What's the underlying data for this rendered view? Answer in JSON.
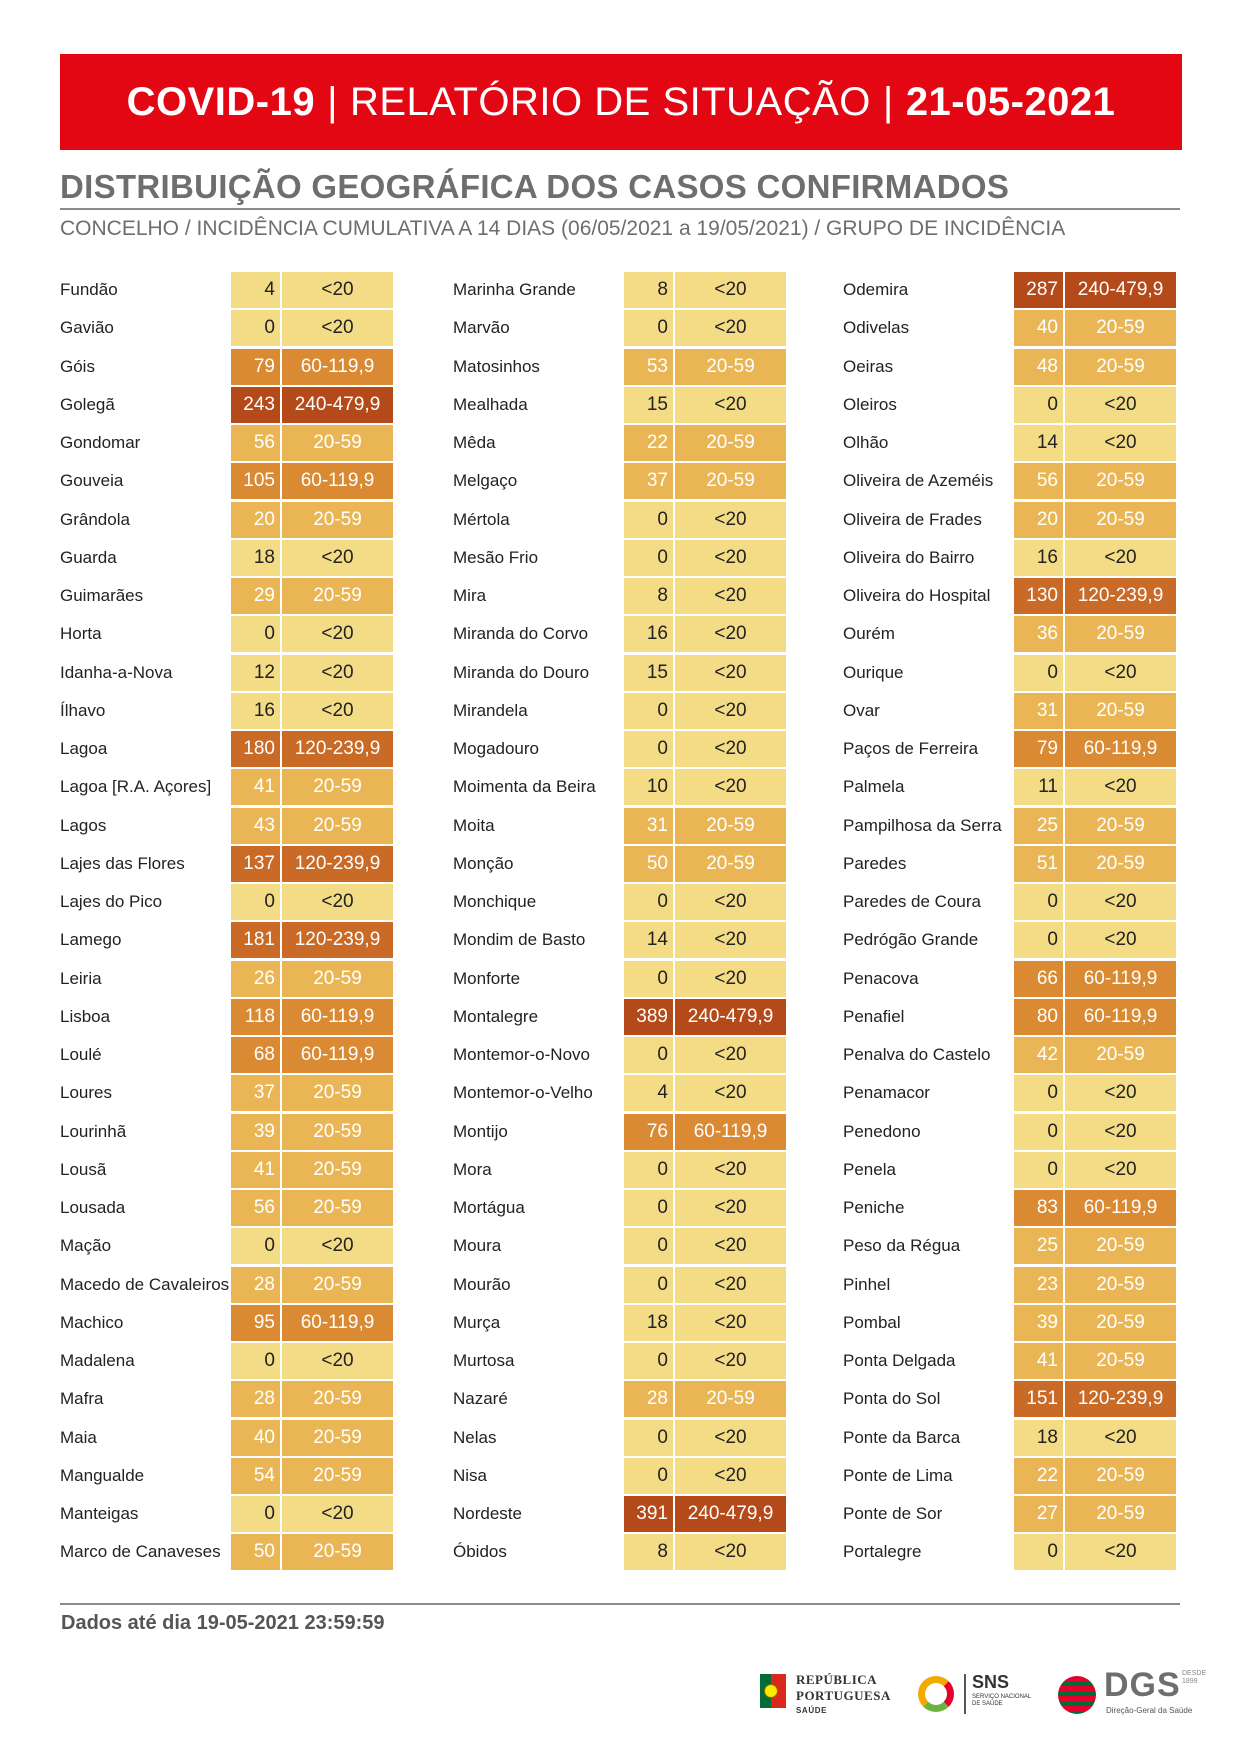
{
  "header": {
    "part1": "COVID-19",
    "sep1": "|",
    "part2": "RELATÓRIO DE SITUAÇÃO",
    "sep2": "|",
    "part3": "21-05-2021"
  },
  "section_title": "DISTRIBUIÇÃO GEOGRÁFICA DOS CASOS CONFIRMADOS",
  "subtitle": "CONCELHO / INCIDÊNCIA CUMULATIVA A 14 DIAS (06/05/2021 a 19/05/2021) / GRUPO DE INCIDÊNCIA",
  "group_colors": {
    "<20": {
      "bg": "#f4dc86",
      "fg": "#222222"
    },
    "20-59": {
      "bg": "#eab655",
      "fg": "#ffffff"
    },
    "60-119,9": {
      "bg": "#d98a33",
      "fg": "#ffffff"
    },
    "120-239,9": {
      "bg": "#c96a27",
      "fg": "#ffffff"
    },
    "240-479,9": {
      "bg": "#b44a1a",
      "fg": "#ffffff"
    }
  },
  "columns": [
    [
      {
        "name": "Fundão",
        "value": "4",
        "group": "<20"
      },
      {
        "name": "Gavião",
        "value": "0",
        "group": "<20"
      },
      {
        "name": "Góis",
        "value": "79",
        "group": "60-119,9"
      },
      {
        "name": "Golegã",
        "value": "243",
        "group": "240-479,9"
      },
      {
        "name": "Gondomar",
        "value": "56",
        "group": "20-59"
      },
      {
        "name": "Gouveia",
        "value": "105",
        "group": "60-119,9"
      },
      {
        "name": "Grândola",
        "value": "20",
        "group": "20-59"
      },
      {
        "name": "Guarda",
        "value": "18",
        "group": "<20"
      },
      {
        "name": "Guimarães",
        "value": "29",
        "group": "20-59"
      },
      {
        "name": "Horta",
        "value": "0",
        "group": "<20"
      },
      {
        "name": "Idanha-a-Nova",
        "value": "12",
        "group": "<20"
      },
      {
        "name": "Ílhavo",
        "value": "16",
        "group": "<20"
      },
      {
        "name": "Lagoa",
        "value": "180",
        "group": "120-239,9"
      },
      {
        "name": "Lagoa [R.A. Açores]",
        "value": "41",
        "group": "20-59"
      },
      {
        "name": "Lagos",
        "value": "43",
        "group": "20-59"
      },
      {
        "name": "Lajes das Flores",
        "value": "137",
        "group": "120-239,9"
      },
      {
        "name": "Lajes do Pico",
        "value": "0",
        "group": "<20"
      },
      {
        "name": "Lamego",
        "value": "181",
        "group": "120-239,9"
      },
      {
        "name": "Leiria",
        "value": "26",
        "group": "20-59"
      },
      {
        "name": "Lisboa",
        "value": "118",
        "group": "60-119,9"
      },
      {
        "name": "Loulé",
        "value": "68",
        "group": "60-119,9"
      },
      {
        "name": "Loures",
        "value": "37",
        "group": "20-59"
      },
      {
        "name": "Lourinhã",
        "value": "39",
        "group": "20-59"
      },
      {
        "name": "Lousã",
        "value": "41",
        "group": "20-59"
      },
      {
        "name": "Lousada",
        "value": "56",
        "group": "20-59"
      },
      {
        "name": "Mação",
        "value": "0",
        "group": "<20"
      },
      {
        "name": "Macedo de Cavaleiros",
        "value": "28",
        "group": "20-59"
      },
      {
        "name": "Machico",
        "value": "95",
        "group": "60-119,9"
      },
      {
        "name": "Madalena",
        "value": "0",
        "group": "<20"
      },
      {
        "name": "Mafra",
        "value": "28",
        "group": "20-59"
      },
      {
        "name": "Maia",
        "value": "40",
        "group": "20-59"
      },
      {
        "name": "Mangualde",
        "value": "54",
        "group": "20-59"
      },
      {
        "name": "Manteigas",
        "value": "0",
        "group": "<20"
      },
      {
        "name": "Marco de Canaveses",
        "value": "50",
        "group": "20-59"
      }
    ],
    [
      {
        "name": "Marinha Grande",
        "value": "8",
        "group": "<20"
      },
      {
        "name": "Marvão",
        "value": "0",
        "group": "<20"
      },
      {
        "name": "Matosinhos",
        "value": "53",
        "group": "20-59"
      },
      {
        "name": "Mealhada",
        "value": "15",
        "group": "<20"
      },
      {
        "name": "Mêda",
        "value": "22",
        "group": "20-59"
      },
      {
        "name": "Melgaço",
        "value": "37",
        "group": "20-59"
      },
      {
        "name": "Mértola",
        "value": "0",
        "group": "<20"
      },
      {
        "name": "Mesão Frio",
        "value": "0",
        "group": "<20"
      },
      {
        "name": "Mira",
        "value": "8",
        "group": "<20"
      },
      {
        "name": "Miranda do Corvo",
        "value": "16",
        "group": "<20"
      },
      {
        "name": "Miranda do Douro",
        "value": "15",
        "group": "<20"
      },
      {
        "name": "Mirandela",
        "value": "0",
        "group": "<20"
      },
      {
        "name": "Mogadouro",
        "value": "0",
        "group": "<20"
      },
      {
        "name": "Moimenta da Beira",
        "value": "10",
        "group": "<20"
      },
      {
        "name": "Moita",
        "value": "31",
        "group": "20-59"
      },
      {
        "name": "Monção",
        "value": "50",
        "group": "20-59"
      },
      {
        "name": "Monchique",
        "value": "0",
        "group": "<20"
      },
      {
        "name": "Mondim de Basto",
        "value": "14",
        "group": "<20"
      },
      {
        "name": "Monforte",
        "value": "0",
        "group": "<20"
      },
      {
        "name": "Montalegre",
        "value": "389",
        "group": "240-479,9"
      },
      {
        "name": "Montemor-o-Novo",
        "value": "0",
        "group": "<20"
      },
      {
        "name": "Montemor-o-Velho",
        "value": "4",
        "group": "<20"
      },
      {
        "name": "Montijo",
        "value": "76",
        "group": "60-119,9"
      },
      {
        "name": "Mora",
        "value": "0",
        "group": "<20"
      },
      {
        "name": "Mortágua",
        "value": "0",
        "group": "<20"
      },
      {
        "name": "Moura",
        "value": "0",
        "group": "<20"
      },
      {
        "name": "Mourão",
        "value": "0",
        "group": "<20"
      },
      {
        "name": "Murça",
        "value": "18",
        "group": "<20"
      },
      {
        "name": "Murtosa",
        "value": "0",
        "group": "<20"
      },
      {
        "name": "Nazaré",
        "value": "28",
        "group": "20-59"
      },
      {
        "name": "Nelas",
        "value": "0",
        "group": "<20"
      },
      {
        "name": "Nisa",
        "value": "0",
        "group": "<20"
      },
      {
        "name": "Nordeste",
        "value": "391",
        "group": "240-479,9"
      },
      {
        "name": "Óbidos",
        "value": "8",
        "group": "<20"
      }
    ],
    [
      {
        "name": "Odemira",
        "value": "287",
        "group": "240-479,9"
      },
      {
        "name": "Odivelas",
        "value": "40",
        "group": "20-59"
      },
      {
        "name": "Oeiras",
        "value": "48",
        "group": "20-59"
      },
      {
        "name": "Oleiros",
        "value": "0",
        "group": "<20"
      },
      {
        "name": "Olhão",
        "value": "14",
        "group": "<20"
      },
      {
        "name": "Oliveira de Azeméis",
        "value": "56",
        "group": "20-59"
      },
      {
        "name": "Oliveira de Frades",
        "value": "20",
        "group": "20-59"
      },
      {
        "name": "Oliveira do Bairro",
        "value": "16",
        "group": "<20"
      },
      {
        "name": "Oliveira do Hospital",
        "value": "130",
        "group": "120-239,9"
      },
      {
        "name": "Ourém",
        "value": "36",
        "group": "20-59"
      },
      {
        "name": "Ourique",
        "value": "0",
        "group": "<20"
      },
      {
        "name": "Ovar",
        "value": "31",
        "group": "20-59"
      },
      {
        "name": "Paços de Ferreira",
        "value": "79",
        "group": "60-119,9"
      },
      {
        "name": "Palmela",
        "value": "11",
        "group": "<20"
      },
      {
        "name": "Pampilhosa da Serra",
        "value": "25",
        "group": "20-59"
      },
      {
        "name": "Paredes",
        "value": "51",
        "group": "20-59"
      },
      {
        "name": "Paredes de Coura",
        "value": "0",
        "group": "<20"
      },
      {
        "name": "Pedrógão Grande",
        "value": "0",
        "group": "<20"
      },
      {
        "name": "Penacova",
        "value": "66",
        "group": "60-119,9"
      },
      {
        "name": "Penafiel",
        "value": "80",
        "group": "60-119,9"
      },
      {
        "name": "Penalva do Castelo",
        "value": "42",
        "group": "20-59"
      },
      {
        "name": "Penamacor",
        "value": "0",
        "group": "<20"
      },
      {
        "name": "Penedono",
        "value": "0",
        "group": "<20"
      },
      {
        "name": "Penela",
        "value": "0",
        "group": "<20"
      },
      {
        "name": "Peniche",
        "value": "83",
        "group": "60-119,9"
      },
      {
        "name": "Peso da Régua",
        "value": "25",
        "group": "20-59"
      },
      {
        "name": "Pinhel",
        "value": "23",
        "group": "20-59"
      },
      {
        "name": "Pombal",
        "value": "39",
        "group": "20-59"
      },
      {
        "name": "Ponta Delgada",
        "value": "41",
        "group": "20-59"
      },
      {
        "name": "Ponta do Sol",
        "value": "151",
        "group": "120-239,9"
      },
      {
        "name": "Ponte da Barca",
        "value": "18",
        "group": "<20"
      },
      {
        "name": "Ponte de Lima",
        "value": "22",
        "group": "20-59"
      },
      {
        "name": "Ponte de Sor",
        "value": "27",
        "group": "20-59"
      },
      {
        "name": "Portalegre",
        "value": "0",
        "group": "<20"
      }
    ]
  ],
  "footer": "Dados até dia 19-05-2021 23:59:59",
  "logos": {
    "republica_line1": "REPÚBLICA",
    "republica_line2": "PORTUGUESA",
    "republica_line3": "SAÚDE",
    "sns_title": "SNS",
    "sns_sub": "SERVIÇO NACIONAL DE SAÚDE",
    "dgs_title": "DGS",
    "dgs_sub": "Direção-Geral da Saúde",
    "dgs_since": "DESDE 1899"
  }
}
